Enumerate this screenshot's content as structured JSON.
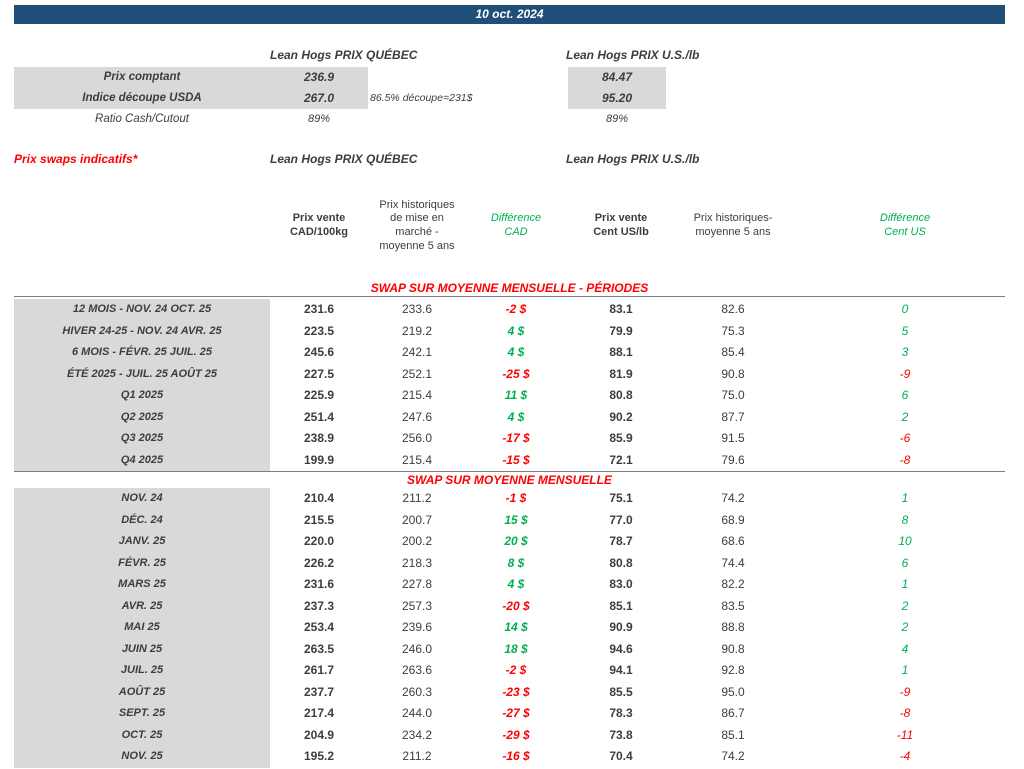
{
  "header": {
    "date": "10 oct. 2024"
  },
  "colors": {
    "header_bar": "#1F4E79",
    "shaded_cell": "#D9D9D9",
    "positive": "#00B050",
    "negative": "#FF0000",
    "section_title": "#FF0000"
  },
  "spot": {
    "quebec_title": "Lean Hogs PRIX QUÉBEC",
    "us_title": "Lean Hogs PRIX U.S./lb",
    "rows": [
      {
        "label": "Prix comptant",
        "qc": "236.9",
        "note": "",
        "us": "84.47"
      },
      {
        "label": "Indice découpe USDA",
        "qc": "267.0",
        "note": "86.5% découpe=231$",
        "us": "95.20"
      },
      {
        "label": "Ratio Cash/Cutout",
        "qc": "89%",
        "note": "",
        "us": "89%"
      }
    ]
  },
  "swaps": {
    "label": "Prix swaps indicatifs*",
    "quebec_title": "Lean Hogs PRIX QUÉBEC",
    "us_title": "Lean Hogs PRIX U.S./lb",
    "columns": {
      "cad_price": "Prix vente\nCAD/100kg",
      "cad_hist": "Prix historiques\nde mise en\nmarché -\nmoyenne 5 ans",
      "diff_cad": "Différence\nCAD",
      "us_price": "Prix vente\nCent US/lb",
      "us_hist": "Prix historiques-\nmoyenne 5 ans",
      "diff_us": "Différence\nCent US"
    },
    "sections": [
      {
        "title": "SWAP SUR MOYENNE MENSUELLE - PÉRIODES",
        "rows": [
          {
            "label": "12 MOIS - NOV. 24 OCT. 25",
            "cad": "231.6",
            "cad_hist": "233.6",
            "diff_cad": "-2 $",
            "us": "83.1",
            "us_hist": "82.6",
            "diff_us": "0"
          },
          {
            "label": "HIVER 24-25 - NOV. 24 AVR. 25",
            "cad": "223.5",
            "cad_hist": "219.2",
            "diff_cad": "4 $",
            "us": "79.9",
            "us_hist": "75.3",
            "diff_us": "5"
          },
          {
            "label": "6 MOIS - FÉVR. 25 JUIL. 25",
            "cad": "245.6",
            "cad_hist": "242.1",
            "diff_cad": "4 $",
            "us": "88.1",
            "us_hist": "85.4",
            "diff_us": "3"
          },
          {
            "label": "ÉTÉ 2025 - JUIL. 25 AOÛT 25",
            "cad": "227.5",
            "cad_hist": "252.1",
            "diff_cad": "-25 $",
            "us": "81.9",
            "us_hist": "90.8",
            "diff_us": "-9"
          },
          {
            "label": "Q1 2025",
            "cad": "225.9",
            "cad_hist": "215.4",
            "diff_cad": "11 $",
            "us": "80.8",
            "us_hist": "75.0",
            "diff_us": "6"
          },
          {
            "label": "Q2 2025",
            "cad": "251.4",
            "cad_hist": "247.6",
            "diff_cad": "4 $",
            "us": "90.2",
            "us_hist": "87.7",
            "diff_us": "2"
          },
          {
            "label": "Q3 2025",
            "cad": "238.9",
            "cad_hist": "256.0",
            "diff_cad": "-17 $",
            "us": "85.9",
            "us_hist": "91.5",
            "diff_us": "-6"
          },
          {
            "label": "Q4 2025",
            "cad": "199.9",
            "cad_hist": "215.4",
            "diff_cad": "-15 $",
            "us": "72.1",
            "us_hist": "79.6",
            "diff_us": "-8"
          }
        ]
      },
      {
        "title": "SWAP SUR MOYENNE MENSUELLE",
        "rows": [
          {
            "label": "NOV. 24",
            "cad": "210.4",
            "cad_hist": "211.2",
            "diff_cad": "-1 $",
            "us": "75.1",
            "us_hist": "74.2",
            "diff_us": "1"
          },
          {
            "label": "DÉC. 24",
            "cad": "215.5",
            "cad_hist": "200.7",
            "diff_cad": "15 $",
            "us": "77.0",
            "us_hist": "68.9",
            "diff_us": "8"
          },
          {
            "label": "JANV. 25",
            "cad": "220.0",
            "cad_hist": "200.2",
            "diff_cad": "20 $",
            "us": "78.7",
            "us_hist": "68.6",
            "diff_us": "10"
          },
          {
            "label": "FÉVR. 25",
            "cad": "226.2",
            "cad_hist": "218.3",
            "diff_cad": "8 $",
            "us": "80.8",
            "us_hist": "74.4",
            "diff_us": "6"
          },
          {
            "label": "MARS 25",
            "cad": "231.6",
            "cad_hist": "227.8",
            "diff_cad": "4 $",
            "us": "83.0",
            "us_hist": "82.2",
            "diff_us": "1"
          },
          {
            "label": "AVR. 25",
            "cad": "237.3",
            "cad_hist": "257.3",
            "diff_cad": "-20 $",
            "us": "85.1",
            "us_hist": "83.5",
            "diff_us": "2"
          },
          {
            "label": "MAI 25",
            "cad": "253.4",
            "cad_hist": "239.6",
            "diff_cad": "14 $",
            "us": "90.9",
            "us_hist": "88.8",
            "diff_us": "2"
          },
          {
            "label": "JUIN 25",
            "cad": "263.5",
            "cad_hist": "246.0",
            "diff_cad": "18 $",
            "us": "94.6",
            "us_hist": "90.8",
            "diff_us": "4"
          },
          {
            "label": "JUIL. 25",
            "cad": "261.7",
            "cad_hist": "263.6",
            "diff_cad": "-2 $",
            "us": "94.1",
            "us_hist": "92.8",
            "diff_us": "1"
          },
          {
            "label": "AOÛT 25",
            "cad": "237.7",
            "cad_hist": "260.3",
            "diff_cad": "-23 $",
            "us": "85.5",
            "us_hist": "95.0",
            "diff_us": "-9"
          },
          {
            "label": "SEPT. 25",
            "cad": "217.4",
            "cad_hist": "244.0",
            "diff_cad": "-27 $",
            "us": "78.3",
            "us_hist": "86.7",
            "diff_us": "-8"
          },
          {
            "label": "OCT. 25",
            "cad": "204.9",
            "cad_hist": "234.2",
            "diff_cad": "-29 $",
            "us": "73.8",
            "us_hist": "85.1",
            "diff_us": "-11"
          },
          {
            "label": "NOV. 25",
            "cad": "195.2",
            "cad_hist": "211.2",
            "diff_cad": "-16 $",
            "us": "70.4",
            "us_hist": "74.2",
            "diff_us": "-4"
          }
        ]
      }
    ]
  }
}
